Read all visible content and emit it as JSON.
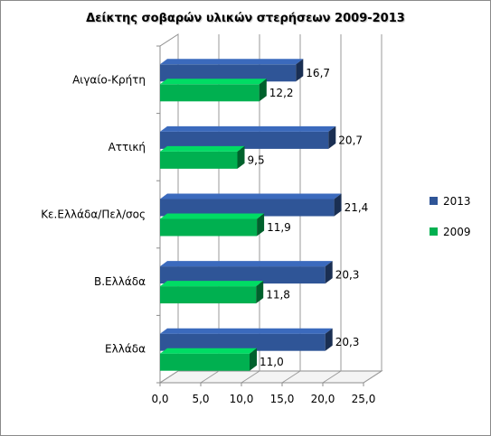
{
  "chart_data": {
    "type": "bar",
    "orientation": "horizontal",
    "title": "Δείκτης σοβαρών υλικών στερήσεων 2009-2013",
    "categories": [
      "Αιγαίο-Κρήτη",
      "Αττική",
      "Κε.Ελλάδα/Πελ/σος",
      "Β.Ελλάδα",
      "Ελλάδα"
    ],
    "series": [
      {
        "name": "2013",
        "values": [
          16.7,
          20.7,
          21.4,
          20.3,
          20.3
        ],
        "labels": [
          "16,7",
          "20,7",
          "21,4",
          "20,3",
          "20,3"
        ],
        "color": "#2f5597"
      },
      {
        "name": "2009",
        "values": [
          12.2,
          9.5,
          11.9,
          11.8,
          11.0
        ],
        "labels": [
          "12,2",
          "9,5",
          "11,9",
          "11,8",
          "11,0"
        ],
        "color": "#00b050"
      }
    ],
    "xlim": [
      0,
      25
    ],
    "xticks": [
      "0,0",
      "5,0",
      "10,0",
      "15,0",
      "20,0",
      "25,0"
    ],
    "xlabel": "",
    "ylabel": "",
    "grid": false,
    "legend_position": "right",
    "style": "3d"
  }
}
